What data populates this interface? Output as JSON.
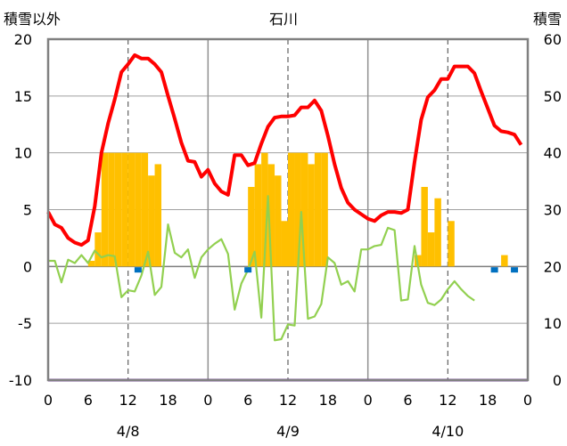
{
  "chart_data": {
    "type": "bar",
    "title": "石川",
    "ylabel_left": "積雪以外",
    "ylabel_right": "積雪",
    "x_tick_labels": [
      "0",
      "6",
      "12",
      "18",
      "0",
      "6",
      "12",
      "18",
      "0",
      "6",
      "12",
      "18",
      "0"
    ],
    "day_labels": [
      "4/8",
      "4/9",
      "4/10"
    ],
    "ylim_left": [
      -10,
      20
    ],
    "ylim_right": [
      0,
      60
    ],
    "y_ticks_left": [
      "20",
      "15",
      "10",
      "5",
      "0",
      "-5",
      "-10"
    ],
    "y_ticks_right": [
      "60",
      "50",
      "40",
      "30",
      "20",
      "10",
      "0"
    ],
    "x_range_hours": [
      0,
      72
    ],
    "series": [
      {
        "kind": "bar",
        "color": "#FFC000",
        "x": [
          6,
          7,
          8,
          9,
          10,
          11,
          12,
          13,
          14,
          15,
          16,
          30,
          31,
          32,
          33,
          34,
          35,
          36,
          37,
          38,
          39,
          40,
          41,
          42,
          43,
          44,
          45,
          54,
          55,
          56,
          57,
          58,
          59,
          60,
          61,
          62,
          63,
          64,
          65,
          66,
          67,
          68,
          69
        ],
        "values": [
          0.5,
          3,
          10,
          10,
          10,
          10,
          10,
          10,
          10,
          8,
          9,
          7,
          9,
          10,
          9,
          8,
          4,
          10,
          10,
          10,
          9,
          10,
          10,
          0,
          0,
          0,
          0,
          0,
          1,
          7,
          3,
          6,
          0,
          4,
          0,
          0,
          0,
          0,
          0,
          0,
          0,
          1,
          0
        ]
      },
      {
        "kind": "line",
        "color": "#FF0000",
        "x": [
          0,
          1,
          2,
          3,
          4,
          5,
          6,
          7,
          8,
          9,
          10,
          11,
          12,
          13,
          14,
          15,
          16,
          17,
          18,
          19,
          20,
          21,
          22,
          23,
          24,
          25,
          26,
          27,
          28,
          29,
          30,
          31,
          32,
          33,
          34,
          35,
          36,
          37,
          38,
          39,
          40,
          41,
          42,
          43,
          44,
          45,
          46,
          47,
          48,
          49,
          50,
          51,
          52,
          53,
          54,
          55,
          56,
          57,
          58,
          59,
          60,
          61,
          62,
          63,
          64,
          65,
          66,
          67,
          68,
          69,
          70,
          71
        ],
        "values": [
          4.8,
          3.7,
          3.4,
          2.5,
          2.1,
          1.9,
          2.3,
          5.3,
          10.0,
          12.6,
          14.7,
          17.1,
          17.8,
          18.6,
          18.3,
          18.3,
          17.8,
          17.1,
          15.0,
          13.0,
          10.9,
          9.3,
          9.2,
          7.9,
          8.5,
          7.3,
          6.6,
          6.3,
          9.8,
          9.8,
          8.9,
          9.1,
          10.8,
          12.3,
          13.1,
          13.2,
          13.2,
          13.3,
          14.0,
          14.0,
          14.6,
          13.7,
          11.5,
          9.0,
          6.9,
          5.6,
          5.0,
          4.6,
          4.2,
          4.0,
          4.5,
          4.8,
          4.8,
          4.7,
          5.0,
          9.2,
          12.9,
          14.9,
          15.5,
          16.5,
          16.5,
          17.6,
          17.6,
          17.6,
          17.0,
          15.4,
          13.9,
          12.4,
          11.9,
          11.8,
          11.6,
          10.7
        ]
      },
      {
        "kind": "line",
        "color": "#92D050",
        "x": [
          0,
          1,
          2,
          3,
          4,
          5,
          6,
          7,
          8,
          9,
          10,
          11,
          12,
          13,
          14,
          15,
          16,
          17,
          18,
          19,
          20,
          21,
          22,
          23,
          24,
          25,
          26,
          27,
          28,
          29,
          30,
          31,
          32,
          33,
          34,
          35,
          36,
          37,
          38,
          39,
          40,
          41,
          42,
          43,
          44,
          45,
          46,
          47,
          48,
          49,
          50,
          51,
          52,
          53,
          54,
          55,
          56,
          57,
          58,
          59,
          60,
          61,
          62,
          63,
          64,
          65,
          66,
          67,
          68,
          69
        ],
        "values": [
          0.5,
          0.5,
          -1.4,
          0.6,
          0.3,
          1.0,
          0.3,
          1.4,
          0.8,
          1.0,
          0.9,
          -2.7,
          -2.1,
          -2.2,
          -0.8,
          1.3,
          -2.5,
          -1.8,
          3.7,
          1.2,
          0.8,
          1.5,
          -1.0,
          0.8,
          1.5,
          2.0,
          2.4,
          1.1,
          -3.8,
          -1.5,
          -0.3,
          1.3,
          -4.5,
          6.2,
          -6.5,
          -6.4,
          -5.1,
          -5.2,
          4.8,
          -4.6,
          -4.4,
          -3.3,
          0.8,
          0.3,
          -1.6,
          -1.3,
          -2.2,
          1.5,
          1.5,
          1.8,
          1.9,
          3.4,
          3.2,
          -3.0,
          -2.9,
          1.8,
          -1.6,
          -3.2,
          -3.4,
          -2.9,
          -2.0,
          -1.3,
          -2.0,
          -2.6,
          -3.0,
          null,
          null,
          null,
          null,
          null
        ]
      },
      {
        "kind": "markers",
        "color": "#0070C0",
        "x": [
          13.5,
          30,
          67,
          70
        ],
        "values": [
          -0.3,
          -0.3,
          -0.3,
          -0.3
        ]
      },
      {
        "kind": "line",
        "color": "#7030A0",
        "x": [
          0,
          72
        ],
        "values": [
          -10,
          -10
        ]
      }
    ],
    "grid_v_solid_at_hours": [
      24,
      48
    ],
    "grid_v_dashed_at_hours": [
      12,
      36,
      60
    ],
    "grid_h": true
  }
}
